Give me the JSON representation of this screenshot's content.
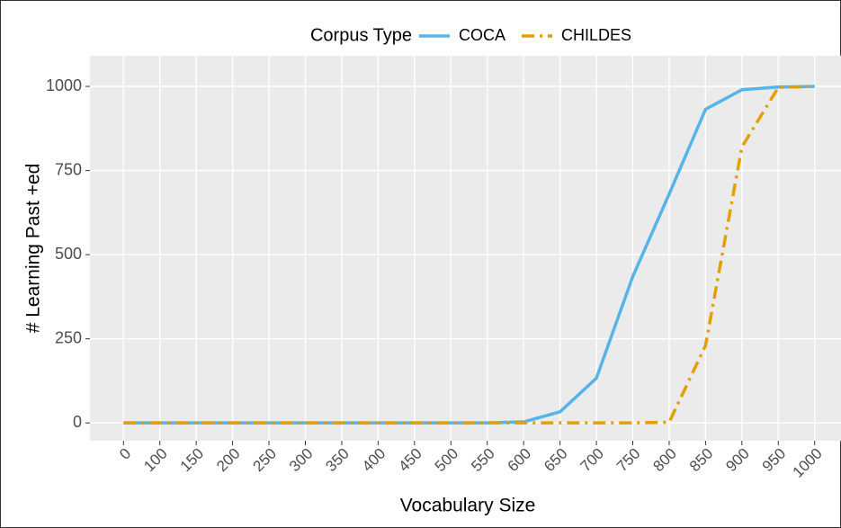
{
  "chart_data": {
    "type": "line",
    "x_label": "Vocabulary Size",
    "y_label": "# Learning Past +ed",
    "legend_title": "Corpus Type",
    "legend_position": "top",
    "grid": true,
    "categories": [
      "0",
      "100",
      "150",
      "200",
      "250",
      "300",
      "350",
      "400",
      "450",
      "500",
      "550",
      "600",
      "650",
      "700",
      "750",
      "800",
      "850",
      "900",
      "950",
      "1000"
    ],
    "series": [
      {
        "name": "COCA",
        "color": "#56B4E9",
        "dash": "solid",
        "values": [
          0,
          0,
          0,
          0,
          0,
          0,
          0,
          0,
          0,
          0,
          0,
          3,
          33,
          133,
          435,
          680,
          932,
          990,
          998,
          1000
        ]
      },
      {
        "name": "CHILDES",
        "color": "#E69F00",
        "dash": "dotdash",
        "values": [
          0,
          0,
          0,
          0,
          0,
          0,
          0,
          0,
          0,
          0,
          0,
          0,
          0,
          0,
          0,
          2,
          230,
          820,
          997,
          1000
        ]
      }
    ],
    "ylim": [
      -53,
      1091
    ],
    "yticks": [
      0,
      250,
      500,
      750,
      1000
    ]
  }
}
